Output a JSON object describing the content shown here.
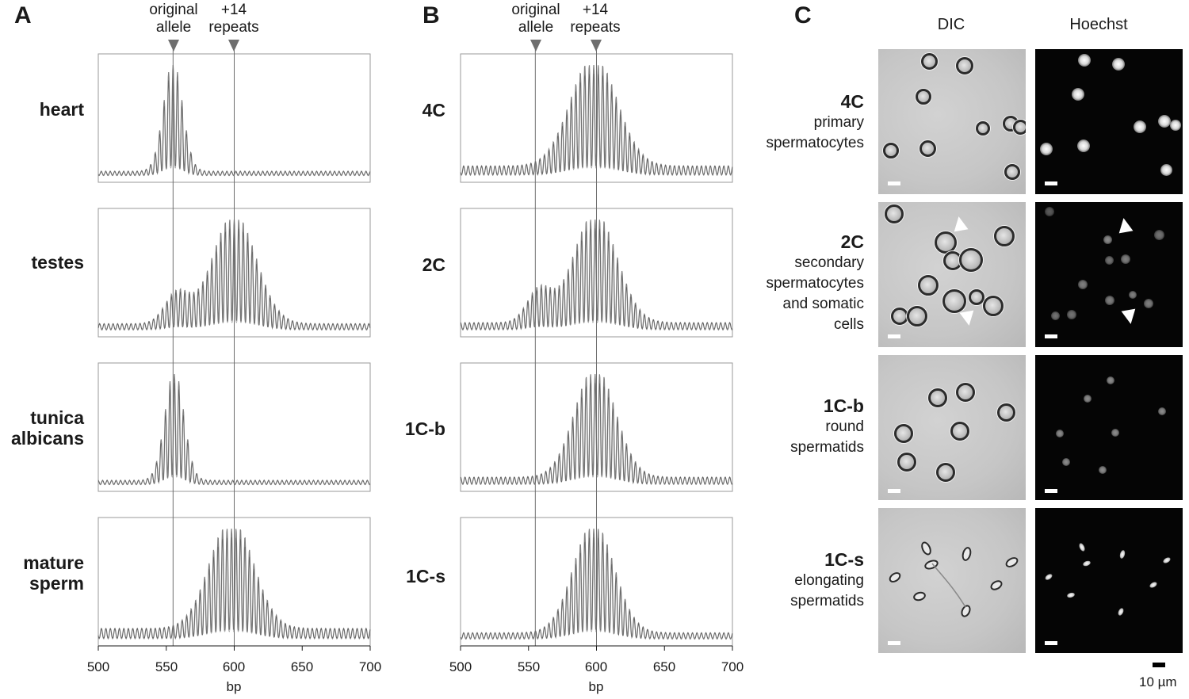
{
  "panels": {
    "a": "A",
    "b": "B",
    "c": "C"
  },
  "markers": {
    "original": "original\nallele",
    "repeats": "+14\nrepeats",
    "original_bp": 555,
    "repeats_bp": 600
  },
  "chart_data": [
    {
      "type": "line",
      "panel": "A",
      "title": "",
      "xlabel": "bp",
      "ylabel": "",
      "xlim": [
        500,
        700
      ],
      "xticks": [
        500,
        550,
        600,
        650,
        700
      ],
      "series": [
        {
          "name": "heart",
          "peak_bp": 555,
          "width": 7,
          "baseline": 0.04,
          "shoulder": 0
        },
        {
          "name": "testes",
          "peak_bp": 600,
          "width": 16,
          "baseline": 0.06,
          "shoulder": 0.28
        },
        {
          "name": "tunica albicans",
          "peak_bp": 556,
          "width": 7,
          "baseline": 0.04,
          "shoulder": 0
        },
        {
          "name": "mature sperm",
          "peak_bp": 598,
          "width": 16,
          "baseline": 0.1,
          "shoulder": 0
        }
      ]
    },
    {
      "type": "line",
      "panel": "B",
      "title": "",
      "xlabel": "bp",
      "ylabel": "",
      "xlim": [
        500,
        700
      ],
      "xticks": [
        500,
        550,
        600,
        650,
        700
      ],
      "series": [
        {
          "name": "4C",
          "peak_bp": 598,
          "width": 17,
          "baseline": 0.09,
          "shoulder": 0
        },
        {
          "name": "2C",
          "peak_bp": 599,
          "width": 16,
          "baseline": 0.07,
          "shoulder": 0.3
        },
        {
          "name": "1C-b",
          "peak_bp": 599,
          "width": 15,
          "baseline": 0.07,
          "shoulder": 0
        },
        {
          "name": "1C-s",
          "peak_bp": 598,
          "width": 15,
          "baseline": 0.06,
          "shoulder": 0
        }
      ]
    }
  ],
  "panelA": {
    "rows": [
      "heart",
      "testes",
      "tunica albicans",
      "mature sperm"
    ]
  },
  "panelB": {
    "rows": [
      "4C",
      "2C",
      "1C-b",
      "1C-s"
    ]
  },
  "panelC": {
    "columns": [
      "DIC",
      "Hoechst"
    ],
    "rows": [
      {
        "stage": "4C",
        "desc": "primary\nspermatocytes"
      },
      {
        "stage": "2C",
        "desc": "secondary\nspermatocytes\nand somatic\ncells"
      },
      {
        "stage": "1C-b",
        "desc": "round\nspermatids"
      },
      {
        "stage": "1C-s",
        "desc": "elongating\nspermatids"
      }
    ],
    "scale_label": "10 µm"
  },
  "colors": {
    "trace": "#808080",
    "trace_dark": "#3a3a3a",
    "frame": "#9a9a9a",
    "marker": "#6e6e6e"
  }
}
